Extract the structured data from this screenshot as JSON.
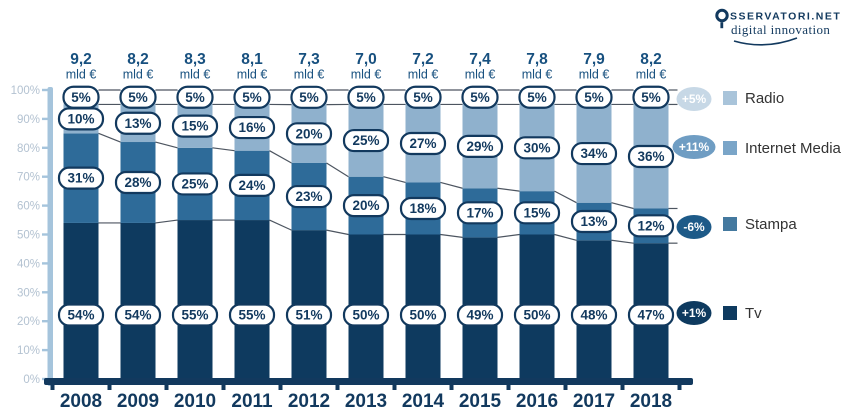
{
  "brand": {
    "name": "SSERVATORI.NET",
    "tagline": "digital innovation"
  },
  "colors": {
    "navy": "#12395e",
    "totals_text": "#17507f",
    "axis_light": "#a5c4dc",
    "y_tick_label": "#b3c2d1",
    "connector": "#4d5560",
    "pill_fill": "#ffffff",
    "legend_text": "#333333"
  },
  "chart_data": {
    "type": "bar",
    "variant": "stacked-100-percent",
    "title": "",
    "xlabel": "",
    "ylabel": "",
    "ylim": [
      0,
      100
    ],
    "grid": false,
    "legend_position": "right",
    "categories": [
      "2008",
      "2009",
      "2010",
      "2011",
      "2012",
      "2013",
      "2014",
      "2015",
      "2016",
      "2017",
      "2018"
    ],
    "totals": [
      "9,2",
      "8,2",
      "8,3",
      "8,1",
      "7,3",
      "7,0",
      "7,2",
      "7,4",
      "7,8",
      "7,9",
      "8,2"
    ],
    "totals_unit": "mld €",
    "y_ticks": [
      "0%",
      "10%",
      "20%",
      "30%",
      "40%",
      "50%",
      "60%",
      "70%",
      "80%",
      "90%",
      "100%"
    ],
    "series": [
      {
        "name": "Tv",
        "color": "#0e3a5f",
        "legend_color": "#0e3a5f",
        "values": [
          54,
          54,
          55,
          55,
          51,
          50,
          50,
          49,
          50,
          48,
          47
        ],
        "badge": {
          "label": "+1%",
          "color": "#0e3a5f"
        }
      },
      {
        "name": "Stampa",
        "color": "#2e6b99",
        "legend_color": "#44799f",
        "values": [
          31,
          28,
          25,
          24,
          23,
          20,
          18,
          17,
          15,
          13,
          12
        ],
        "badge": {
          "label": "-6%",
          "color": "#1d5a88"
        }
      },
      {
        "name": "Internet Media",
        "color": "#8fb1cd",
        "legend_color": "#7aa5c8",
        "values": [
          10,
          13,
          15,
          16,
          20,
          25,
          27,
          29,
          30,
          34,
          36
        ],
        "badge": {
          "label": "+11%",
          "color": "#6f9dc3"
        }
      },
      {
        "name": "Radio",
        "color": "#b5cbde",
        "legend_color": "#a9c4da",
        "values": [
          5,
          5,
          5,
          5,
          5,
          5,
          5,
          5,
          5,
          5,
          5
        ],
        "badge": {
          "label": "+5%",
          "color": "#c7d8e6"
        }
      }
    ],
    "legend": [
      "Radio",
      "Internet Media",
      "Stampa",
      "Tv"
    ]
  }
}
